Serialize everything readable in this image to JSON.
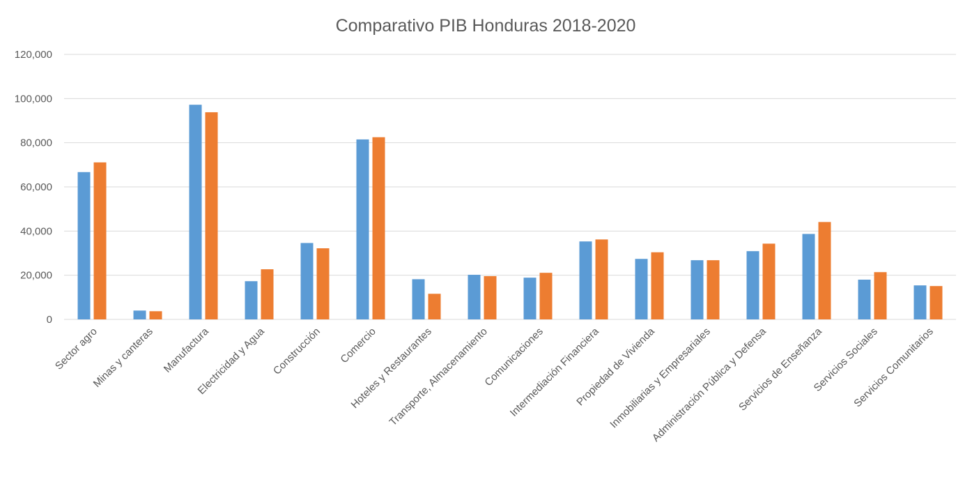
{
  "chart_data": {
    "type": "bar",
    "title": "Comparativo PIB Honduras 2018-2020",
    "xlabel": "",
    "ylabel": "",
    "ylim": [
      0,
      120000
    ],
    "yticks": [
      "0",
      "20,000",
      "40,000",
      "60,000",
      "80,000",
      "100,000",
      "120,000"
    ],
    "grid": true,
    "legend": "none",
    "categories": [
      "Sector agro",
      "Minas y canteras",
      "Manufactura",
      "Electricidad y  Agua",
      "Construcción",
      "Comercio",
      "Hoteles y Restaurantes",
      "Transporte, Almacenamiento",
      "Comunicaciones",
      "Intermediación Financiera",
      "Propiedad de Vivienda",
      "Inmobiliarias y Empresariales",
      "Administración Pública y Defensa",
      "Servicios de Enseñanza",
      "Servicios Sociales",
      "Servicios Comunitarios"
    ],
    "series": [
      {
        "color": "#5b9bd5",
        "values": [
          66700,
          4000,
          97200,
          17300,
          34600,
          81500,
          18200,
          20200,
          18900,
          35300,
          27400,
          26800,
          30900,
          38700,
          18000,
          15400
        ]
      },
      {
        "color": "#ed7d31",
        "values": [
          71100,
          3700,
          93800,
          22700,
          32200,
          82500,
          11600,
          19600,
          21100,
          36200,
          30400,
          26800,
          34300,
          44100,
          21400,
          15100
        ]
      }
    ]
  }
}
